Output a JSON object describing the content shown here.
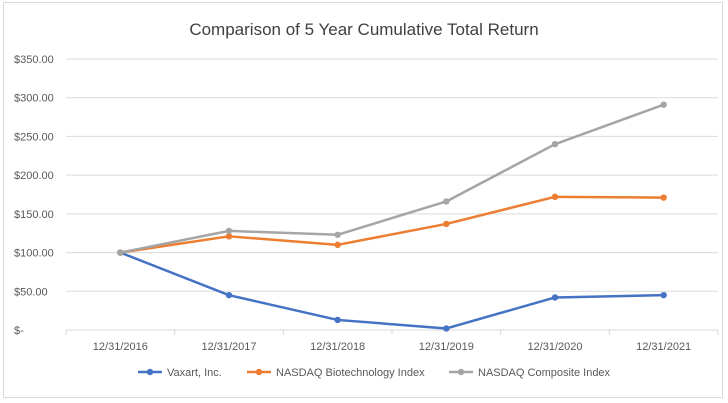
{
  "chart_data": {
    "type": "line",
    "title": "Comparison of 5 Year Cumulative Total Return",
    "xlabel": "",
    "ylabel": "",
    "categories": [
      "12/31/2016",
      "12/31/2017",
      "12/31/2018",
      "12/31/2019",
      "12/31/2020",
      "12/31/2021"
    ],
    "y_ticks": [
      0,
      50,
      100,
      150,
      200,
      250,
      300,
      350
    ],
    "y_tick_labels": [
      "$-",
      "$50.00",
      "$100.00",
      "$150.00",
      "$200.00",
      "$250.00",
      "$300.00",
      "$350.00"
    ],
    "ylim": [
      0,
      350
    ],
    "grid": true,
    "legend_position": "bottom",
    "series": [
      {
        "name": "Vaxart, Inc.",
        "color": "#4472c4",
        "values": [
          100,
          45,
          13,
          2,
          42,
          45
        ]
      },
      {
        "name": "NASDAQ Biotechnology Index",
        "color": "#ed7d31",
        "values": [
          100,
          121,
          110,
          137,
          172,
          171
        ]
      },
      {
        "name": "NASDAQ Composite Index",
        "color": "#a5a5a5",
        "values": [
          100,
          128,
          123,
          166,
          240,
          291
        ]
      }
    ]
  }
}
